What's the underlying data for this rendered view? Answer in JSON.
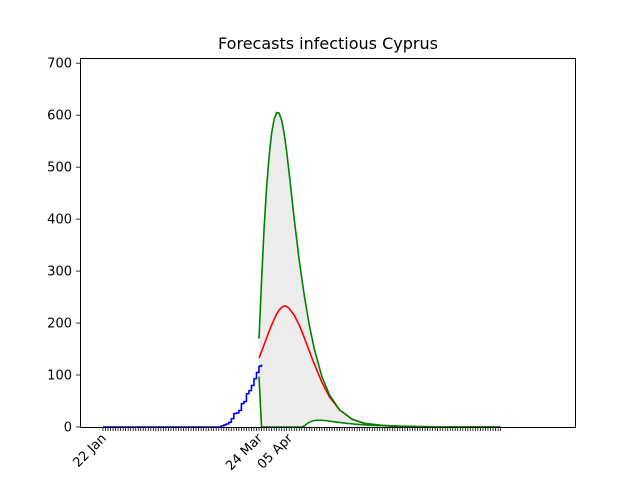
{
  "chart_data": {
    "type": "line",
    "title": "Forecasts infectious Cyprus",
    "xlabel": "",
    "ylabel": "",
    "x_axis": {
      "type": "date",
      "start": "2020-01-22",
      "end": "2020-06-28",
      "tick_labels": [
        {
          "date": "2020-01-22",
          "label": "22 Jan"
        },
        {
          "date": "2020-03-24",
          "label": "24 Mar"
        },
        {
          "date": "2020-04-05",
          "label": "05 Apr"
        }
      ]
    },
    "ylim": [
      0,
      710
    ],
    "y_ticks": [
      0,
      100,
      200,
      300,
      400,
      500,
      600,
      700
    ],
    "grid": false,
    "legend": "none",
    "series": [
      {
        "role": "observed",
        "color": "#0000ff",
        "points": [
          [
            "2020-01-22",
            0
          ],
          [
            "2020-03-04",
            0
          ],
          [
            "2020-03-08",
            0
          ],
          [
            "2020-03-09",
            2
          ],
          [
            "2020-03-10",
            4
          ],
          [
            "2020-03-11",
            6
          ],
          [
            "2020-03-12",
            9
          ],
          [
            "2020-03-13",
            16
          ],
          [
            "2020-03-14",
            26
          ],
          [
            "2020-03-15",
            27
          ],
          [
            "2020-03-16",
            32
          ],
          [
            "2020-03-17",
            45
          ],
          [
            "2020-03-18",
            49
          ],
          [
            "2020-03-19",
            64
          ],
          [
            "2020-03-20",
            70
          ],
          [
            "2020-03-21",
            80
          ],
          [
            "2020-03-22",
            93
          ],
          [
            "2020-03-23",
            105
          ],
          [
            "2020-03-24",
            117
          ],
          [
            "2020-03-25",
            120
          ]
        ]
      },
      {
        "role": "forecast-central",
        "color": "#ff0000",
        "points": [
          [
            "2020-03-24",
            133
          ],
          [
            "2020-03-25",
            145
          ],
          [
            "2020-03-26",
            158
          ],
          [
            "2020-03-27",
            171
          ],
          [
            "2020-03-28",
            184
          ],
          [
            "2020-03-29",
            196
          ],
          [
            "2020-03-30",
            207
          ],
          [
            "2020-03-31",
            217
          ],
          [
            "2020-04-01",
            225
          ],
          [
            "2020-04-02",
            230
          ],
          [
            "2020-04-03",
            233
          ],
          [
            "2020-04-04",
            232
          ],
          [
            "2020-04-05",
            228
          ],
          [
            "2020-04-07",
            215
          ],
          [
            "2020-04-09",
            196
          ],
          [
            "2020-04-11",
            172
          ],
          [
            "2020-04-13",
            146
          ],
          [
            "2020-04-15",
            121
          ],
          [
            "2020-04-18",
            86
          ],
          [
            "2020-04-21",
            58
          ],
          [
            "2020-04-25",
            33
          ],
          [
            "2020-04-30",
            15
          ],
          [
            "2020-05-05",
            7
          ],
          [
            "2020-05-12",
            3
          ],
          [
            "2020-05-20",
            1
          ],
          [
            "2020-06-01",
            0
          ],
          [
            "2020-06-28",
            0
          ]
        ]
      },
      {
        "role": "forecast-upper",
        "color": "#008000",
        "points": [
          [
            "2020-03-24",
            170
          ],
          [
            "2020-03-25",
            280
          ],
          [
            "2020-03-26",
            380
          ],
          [
            "2020-03-27",
            460
          ],
          [
            "2020-03-28",
            520
          ],
          [
            "2020-03-29",
            565
          ],
          [
            "2020-03-30",
            592
          ],
          [
            "2020-03-31",
            605
          ],
          [
            "2020-04-01",
            604
          ],
          [
            "2020-04-02",
            590
          ],
          [
            "2020-04-03",
            565
          ],
          [
            "2020-04-04",
            530
          ],
          [
            "2020-04-05",
            488
          ],
          [
            "2020-04-07",
            400
          ],
          [
            "2020-04-09",
            320
          ],
          [
            "2020-04-11",
            253
          ],
          [
            "2020-04-13",
            196
          ],
          [
            "2020-04-15",
            150
          ],
          [
            "2020-04-18",
            97
          ],
          [
            "2020-04-21",
            62
          ],
          [
            "2020-04-25",
            33
          ],
          [
            "2020-04-30",
            15
          ],
          [
            "2020-05-05",
            7
          ],
          [
            "2020-05-12",
            3
          ],
          [
            "2020-05-20",
            1
          ],
          [
            "2020-06-01",
            0
          ],
          [
            "2020-06-28",
            0
          ]
        ]
      },
      {
        "role": "forecast-lower",
        "color": "#008000",
        "points": [
          [
            "2020-03-24",
            97
          ],
          [
            "2020-03-25",
            0
          ],
          [
            "2020-04-10",
            0
          ],
          [
            "2020-04-11",
            2
          ],
          [
            "2020-04-12",
            6
          ],
          [
            "2020-04-13",
            9
          ],
          [
            "2020-04-14",
            11
          ],
          [
            "2020-04-15",
            12.5
          ],
          [
            "2020-04-16",
            13
          ],
          [
            "2020-04-18",
            13
          ],
          [
            "2020-04-20",
            12
          ],
          [
            "2020-04-23",
            10
          ],
          [
            "2020-04-27",
            7.5
          ],
          [
            "2020-05-01",
            5.5
          ],
          [
            "2020-05-07",
            3.5
          ],
          [
            "2020-05-15",
            2
          ],
          [
            "2020-05-25",
            1
          ],
          [
            "2020-06-10",
            0
          ],
          [
            "2020-06-28",
            0
          ]
        ]
      }
    ],
    "band": {
      "between": [
        "forecast-lower",
        "forecast-upper"
      ],
      "color": "#ececec"
    }
  }
}
